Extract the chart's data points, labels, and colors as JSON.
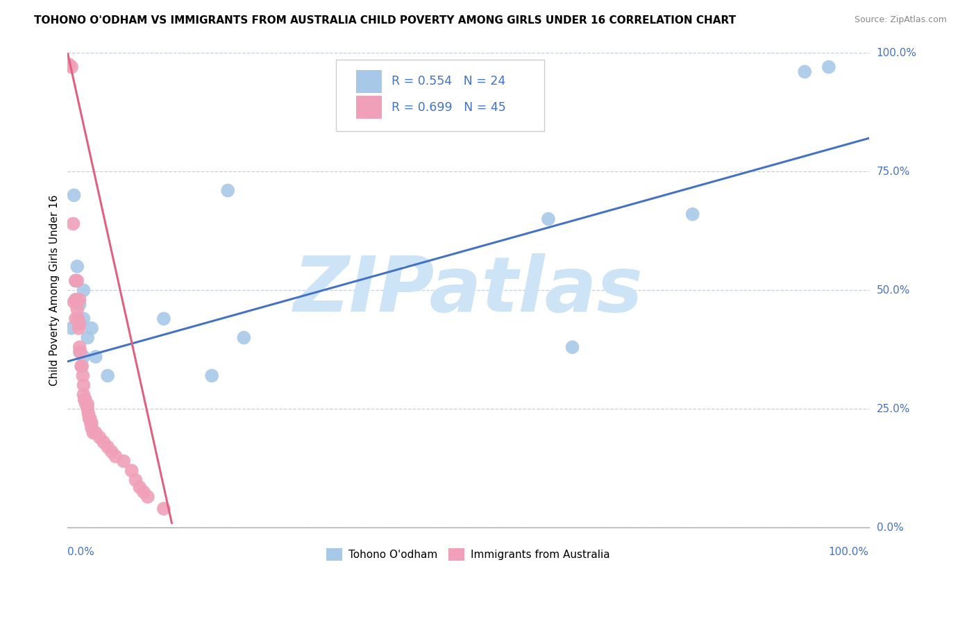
{
  "title": "TOHONO O'ODHAM VS IMMIGRANTS FROM AUSTRALIA CHILD POVERTY AMONG GIRLS UNDER 16 CORRELATION CHART",
  "source": "Source: ZipAtlas.com",
  "ylabel": "Child Poverty Among Girls Under 16",
  "legend_label1": "Tohono O'odham",
  "legend_label2": "Immigrants from Australia",
  "r1": "0.554",
  "n1": "24",
  "r2": "0.699",
  "n2": "45",
  "color_blue": "#a8c8e8",
  "color_pink": "#f0a0b8",
  "color_line_blue": "#4472c4",
  "color_line_pink": "#e06080",
  "color_text_blue": "#4472c4",
  "watermark_text": "ZIPatlas",
  "watermark_color": "#cce4f5",
  "blue_scatter": [
    [
      0.5,
      42.0
    ],
    [
      0.8,
      70.0
    ],
    [
      1.0,
      52.0
    ],
    [
      1.0,
      48.0
    ],
    [
      1.2,
      55.0
    ],
    [
      1.5,
      47.0
    ],
    [
      1.5,
      43.0
    ],
    [
      1.5,
      37.0
    ],
    [
      2.0,
      50.0
    ],
    [
      2.0,
      44.0
    ],
    [
      2.0,
      36.0
    ],
    [
      2.5,
      40.0
    ],
    [
      3.0,
      42.0
    ],
    [
      3.5,
      36.0
    ],
    [
      5.0,
      32.0
    ],
    [
      12.0,
      44.0
    ],
    [
      18.0,
      32.0
    ],
    [
      20.0,
      71.0
    ],
    [
      22.0,
      40.0
    ],
    [
      60.0,
      65.0
    ],
    [
      63.0,
      38.0
    ],
    [
      78.0,
      66.0
    ],
    [
      92.0,
      96.0
    ],
    [
      95.0,
      97.0
    ]
  ],
  "pink_scatter": [
    [
      0.2,
      97.5
    ],
    [
      0.5,
      97.0
    ],
    [
      0.7,
      64.0
    ],
    [
      0.8,
      47.5
    ],
    [
      1.0,
      52.0
    ],
    [
      1.0,
      48.0
    ],
    [
      1.0,
      44.0
    ],
    [
      1.2,
      52.0
    ],
    [
      1.2,
      46.0
    ],
    [
      1.3,
      44.0
    ],
    [
      1.4,
      42.0
    ],
    [
      1.5,
      48.0
    ],
    [
      1.5,
      43.0
    ],
    [
      1.5,
      38.0
    ],
    [
      1.6,
      37.0
    ],
    [
      1.7,
      34.0
    ],
    [
      1.8,
      34.0
    ],
    [
      1.9,
      32.0
    ],
    [
      2.0,
      30.0
    ],
    [
      2.0,
      28.0
    ],
    [
      2.1,
      27.0
    ],
    [
      2.2,
      27.0
    ],
    [
      2.3,
      26.0
    ],
    [
      2.5,
      26.0
    ],
    [
      2.5,
      25.0
    ],
    [
      2.6,
      24.0
    ],
    [
      2.7,
      23.0
    ],
    [
      2.8,
      23.0
    ],
    [
      2.9,
      22.0
    ],
    [
      3.0,
      22.0
    ],
    [
      3.0,
      21.0
    ],
    [
      3.2,
      20.0
    ],
    [
      3.5,
      20.0
    ],
    [
      4.0,
      19.0
    ],
    [
      4.5,
      18.0
    ],
    [
      5.0,
      17.0
    ],
    [
      5.5,
      16.0
    ],
    [
      6.0,
      15.0
    ],
    [
      7.0,
      14.0
    ],
    [
      8.0,
      12.0
    ],
    [
      8.5,
      10.0
    ],
    [
      9.0,
      8.5
    ],
    [
      9.5,
      7.5
    ],
    [
      10.0,
      6.5
    ],
    [
      12.0,
      4.0
    ]
  ],
  "blue_line": [
    [
      0,
      35.0
    ],
    [
      100,
      82.0
    ]
  ],
  "pink_line": [
    [
      0.0,
      100.0
    ],
    [
      13.0,
      1.0
    ]
  ],
  "xlim": [
    0,
    100
  ],
  "ylim": [
    0,
    100
  ],
  "xtick_positions": [
    0,
    100
  ],
  "xtick_labels": [
    "0.0%",
    "100.0%"
  ],
  "ytick_positions": [
    0,
    25,
    50,
    75,
    100
  ],
  "ytick_labels": [
    "0.0%",
    "25.0%",
    "50.0%",
    "75.0%",
    "100.0%"
  ],
  "grid_color": "#c0d0e0",
  "grid_linestyle": "--",
  "background_color": "#ffffff"
}
